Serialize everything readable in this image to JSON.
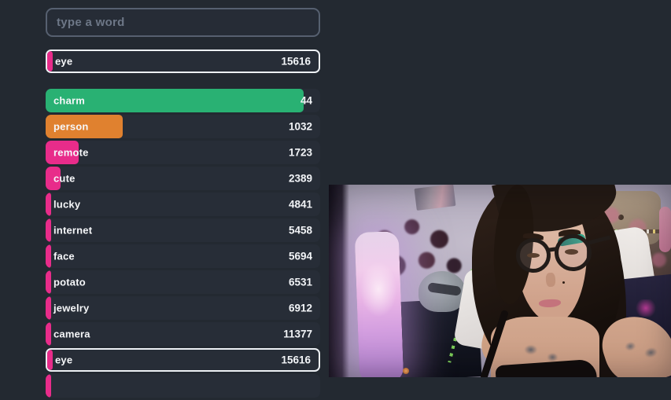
{
  "input": {
    "placeholder": "type a word"
  },
  "current_guess": {
    "word": "eye",
    "rank": "15616",
    "bar_color": "#e82c8a",
    "bar_pct": 2,
    "highlighted": true
  },
  "guesses": [
    {
      "word": "charm",
      "rank": "44",
      "bar_color": "#29b173",
      "bar_pct": 94,
      "highlighted": false
    },
    {
      "word": "person",
      "rank": "1032",
      "bar_color": "#e0812f",
      "bar_pct": 28,
      "highlighted": false
    },
    {
      "word": "remote",
      "rank": "1723",
      "bar_color": "#e82c8a",
      "bar_pct": 12,
      "highlighted": false
    },
    {
      "word": "cute",
      "rank": "2389",
      "bar_color": "#e82c8a",
      "bar_pct": 5.5,
      "highlighted": false
    },
    {
      "word": "lucky",
      "rank": "4841",
      "bar_color": "#e82c8a",
      "bar_pct": 2,
      "highlighted": false
    },
    {
      "word": "internet",
      "rank": "5458",
      "bar_color": "#e82c8a",
      "bar_pct": 2,
      "highlighted": false
    },
    {
      "word": "face",
      "rank": "5694",
      "bar_color": "#e82c8a",
      "bar_pct": 2,
      "highlighted": false
    },
    {
      "word": "potato",
      "rank": "6531",
      "bar_color": "#e82c8a",
      "bar_pct": 2,
      "highlighted": false
    },
    {
      "word": "jewelry",
      "rank": "6912",
      "bar_color": "#e82c8a",
      "bar_pct": 2,
      "highlighted": false
    },
    {
      "word": "camera",
      "rank": "11377",
      "bar_color": "#e82c8a",
      "bar_pct": 2,
      "highlighted": false
    },
    {
      "word": "eye",
      "rank": "15616",
      "bar_color": "#e82c8a",
      "bar_pct": 2,
      "highlighted": true
    }
  ],
  "partial_next_row": {
    "bar_color": "#e82c8a",
    "bar_pct": 2
  },
  "theme": {
    "page_bg": "#232931",
    "row_bg": "#272d37",
    "text": "#f4f6f8",
    "placeholder": "#6d7787",
    "input_border": "#566070",
    "highlight_border": "#edf0f4",
    "bar_green": "#29b173",
    "bar_orange": "#e0812f",
    "bar_pink": "#e82c8a"
  },
  "webcam": {
    "lamp_glow": "#c494e2",
    "accent_pink": "#d795ac"
  }
}
